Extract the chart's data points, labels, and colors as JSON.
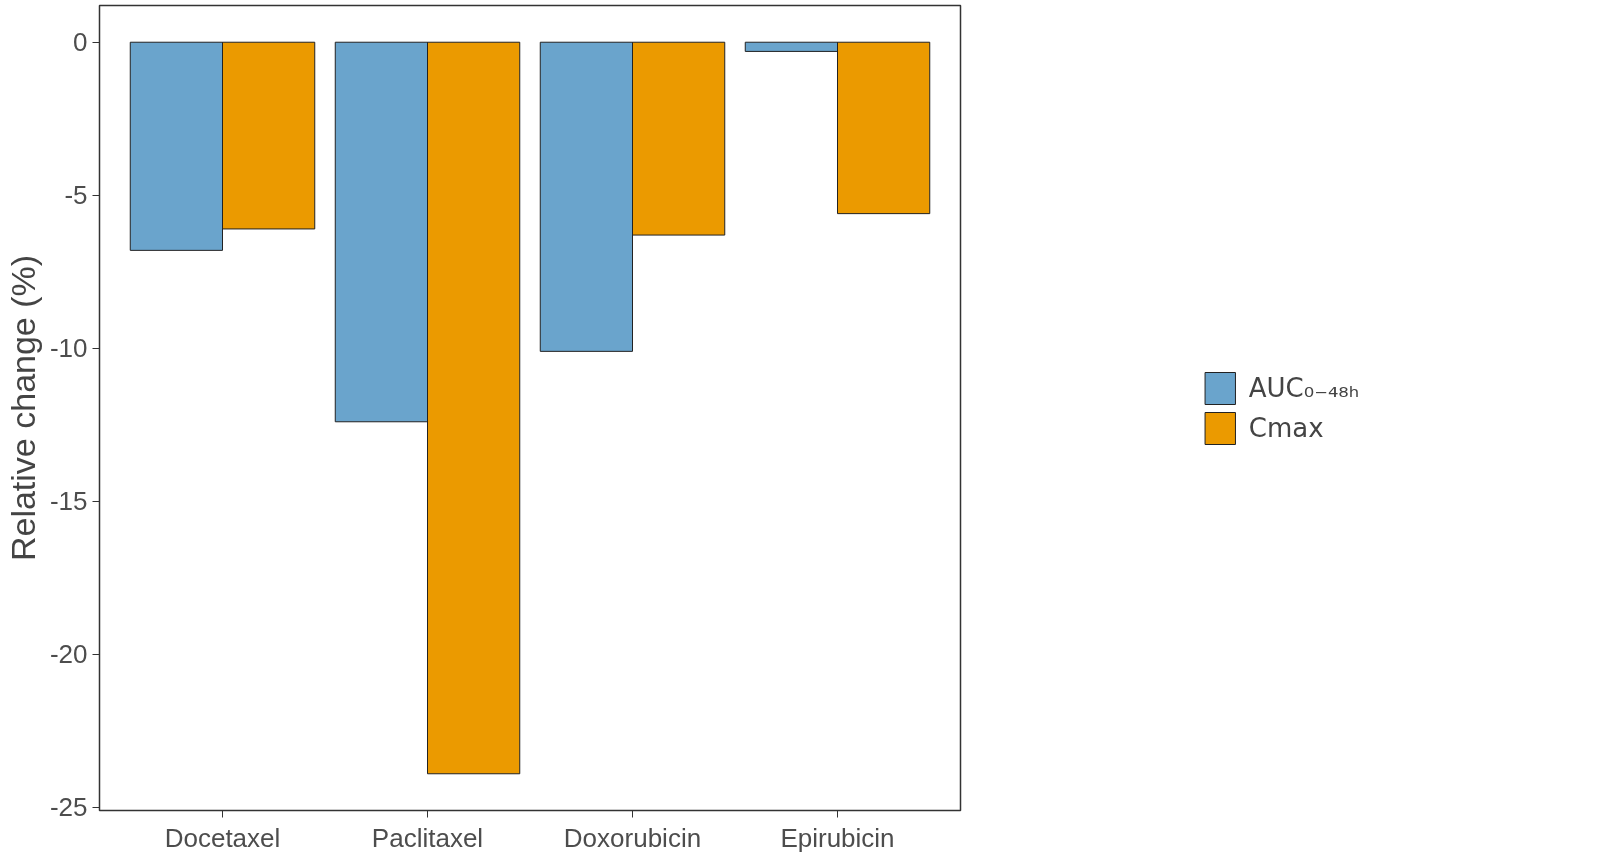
{
  "chart_data": {
    "type": "bar",
    "ylabel": "Relative change (%)",
    "categories": [
      "Docetaxel",
      "Paclitaxel",
      "Doxorubicin",
      "Epirubicin"
    ],
    "series": [
      {
        "name": "AUC₀₋₄₈ₕ",
        "color": "#6aa4cc",
        "values": [
          -6.8,
          -12.4,
          -10.1,
          -0.3
        ]
      },
      {
        "name": "Cmax",
        "color": "#eb9a00",
        "values": [
          -6.1,
          -23.9,
          -6.3,
          -5.6
        ]
      }
    ],
    "ylim": [
      -25.1,
      1.2
    ],
    "yticks": [
      -25,
      -20,
      -15,
      -10,
      -5,
      0
    ],
    "grid": false,
    "legend": "right"
  }
}
